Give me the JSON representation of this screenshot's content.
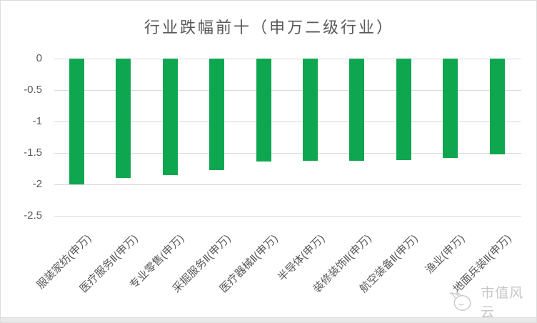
{
  "chart_data": {
    "type": "bar",
    "title": "行业跌幅前十（申万二级行业）",
    "categories": [
      "服装家纺(申万)",
      "医疗服务Ⅱ(申万)",
      "专业零售(申万)",
      "采掘服务Ⅱ(申万)",
      "医疗器械Ⅱ(申万)",
      "半导体(申万)",
      "装修装饰Ⅱ(申万)",
      "航空装备Ⅱ(申万)",
      "渔业(申万)",
      "地面兵装Ⅱ(申万)"
    ],
    "values": [
      -2.0,
      -1.9,
      -1.85,
      -1.77,
      -1.64,
      -1.63,
      -1.62,
      -1.61,
      -1.58,
      -1.52
    ],
    "xlabel": "",
    "ylabel": "",
    "ylim": [
      -2.5,
      0
    ],
    "ytick_labels": [
      "0",
      "-0.5",
      "-1",
      "-1.5",
      "-2",
      "-2.5"
    ],
    "ytick_values": [
      0,
      -0.5,
      -1,
      -1.5,
      -2,
      -2.5
    ],
    "grid": true,
    "legend_position": "none",
    "x_label_rotation_deg": -45,
    "bar_color": "#0ea750",
    "gridline_color": "#d9d9d9",
    "tick_label_color": "#595959",
    "title_color": "#595959"
  },
  "watermark": {
    "text": "市值风云",
    "icon": "mascot-sketch-icon",
    "color": "#c6c6c6"
  }
}
